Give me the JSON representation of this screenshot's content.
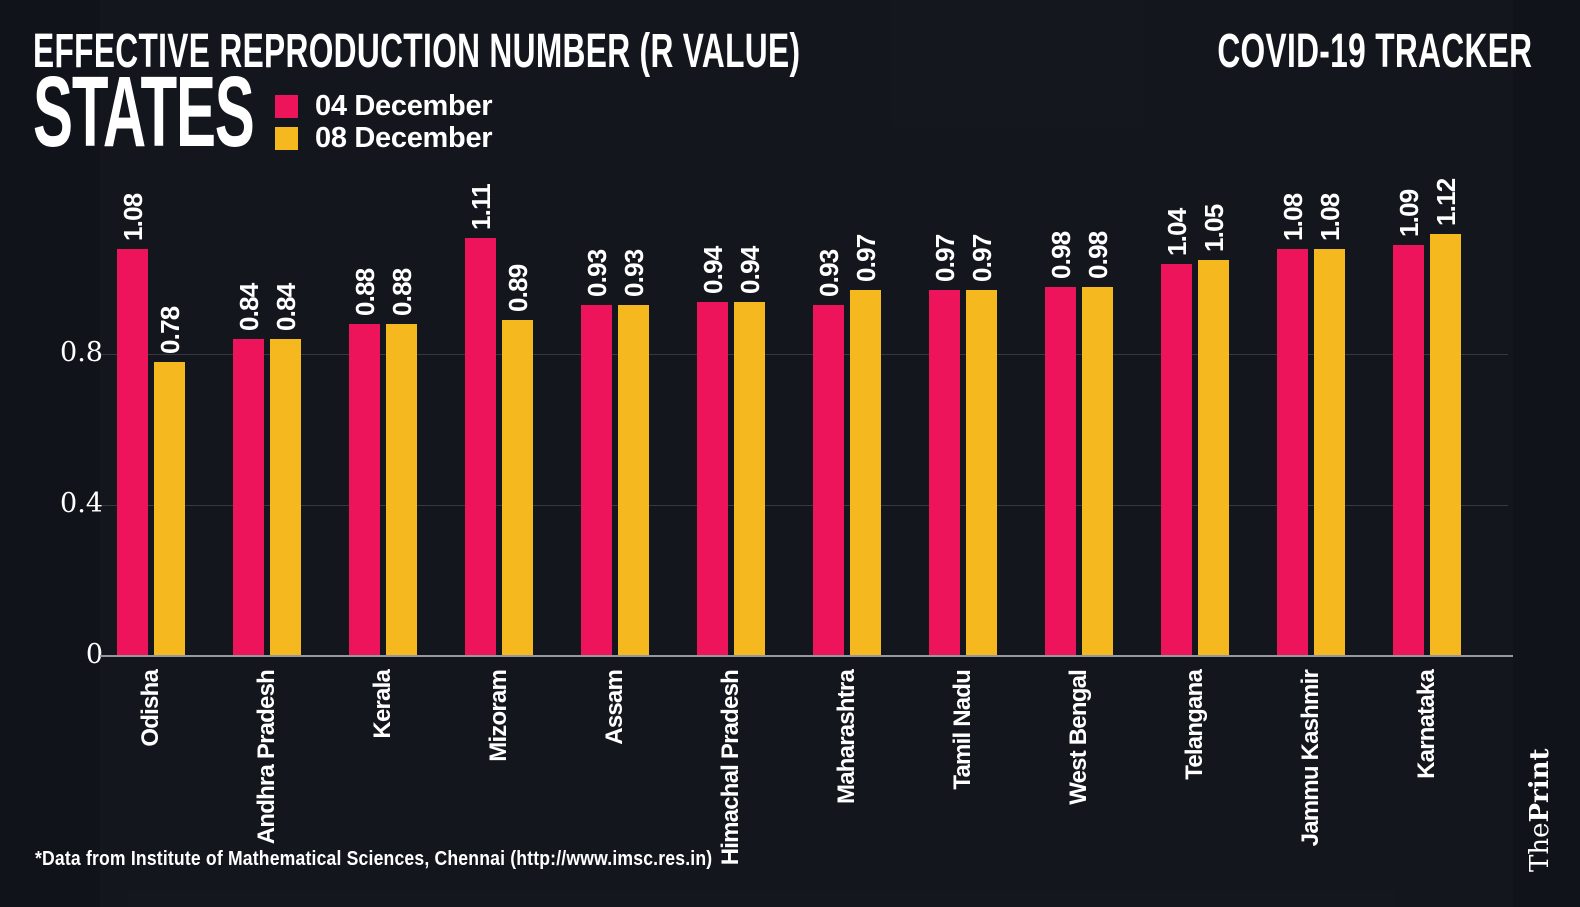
{
  "header": {
    "title": "EFFECTIVE REPRODUCTION NUMBER (R VALUE)",
    "tracker_label": "COVID-19 TRACKER",
    "section_label": "STATES"
  },
  "legend": {
    "items": [
      {
        "label": "04 December",
        "color": "#EE145B"
      },
      {
        "label": "08 December",
        "color": "#F5B81E"
      }
    ]
  },
  "chart_data": {
    "type": "bar",
    "title": "EFFECTIVE REPRODUCTION NUMBER (R VALUE) - STATES",
    "categories": [
      "Odisha",
      "Andhra Pradesh",
      "Kerala",
      "Mizoram",
      "Assam",
      "Himachal Pradesh",
      "Maharashtra",
      "Tamil Nadu",
      "West Bengal",
      "Telangana",
      "Jammu Kashmir",
      "Karnataka"
    ],
    "series": [
      {
        "name": "04 December",
        "color": "#EE145B",
        "values": [
          1.08,
          0.84,
          0.88,
          1.11,
          0.93,
          0.94,
          0.93,
          0.97,
          0.98,
          1.04,
          1.08,
          1.09
        ]
      },
      {
        "name": "08 December",
        "color": "#F5B81E",
        "values": [
          0.78,
          0.84,
          0.88,
          0.89,
          0.93,
          0.94,
          0.97,
          0.97,
          0.98,
          1.05,
          1.08,
          1.12
        ]
      }
    ],
    "value_labels_shown": true,
    "yticks": [
      {
        "value": 0,
        "label": "0"
      },
      {
        "value": 0.4,
        "label": "0.4"
      },
      {
        "value": 0.8,
        "label": "0.8"
      }
    ],
    "ylim": [
      0,
      1.21
    ],
    "xlabel": "",
    "ylabel": "",
    "grid": "horizontal",
    "legend_position": "top-left"
  },
  "footer": {
    "source_note": "*Data from Institute of Mathematical Sciences, Chennai (http://www.imsc.res.in)",
    "brand": {
      "part1": "The",
      "part2": "Print"
    }
  },
  "colors": {
    "background": "#11131B",
    "series_04dec": "#EE145B",
    "series_08dec": "#F5B81E",
    "grid_line": "#3A3B44",
    "axis_line": "#97989E",
    "text": "#FFFFFF"
  }
}
